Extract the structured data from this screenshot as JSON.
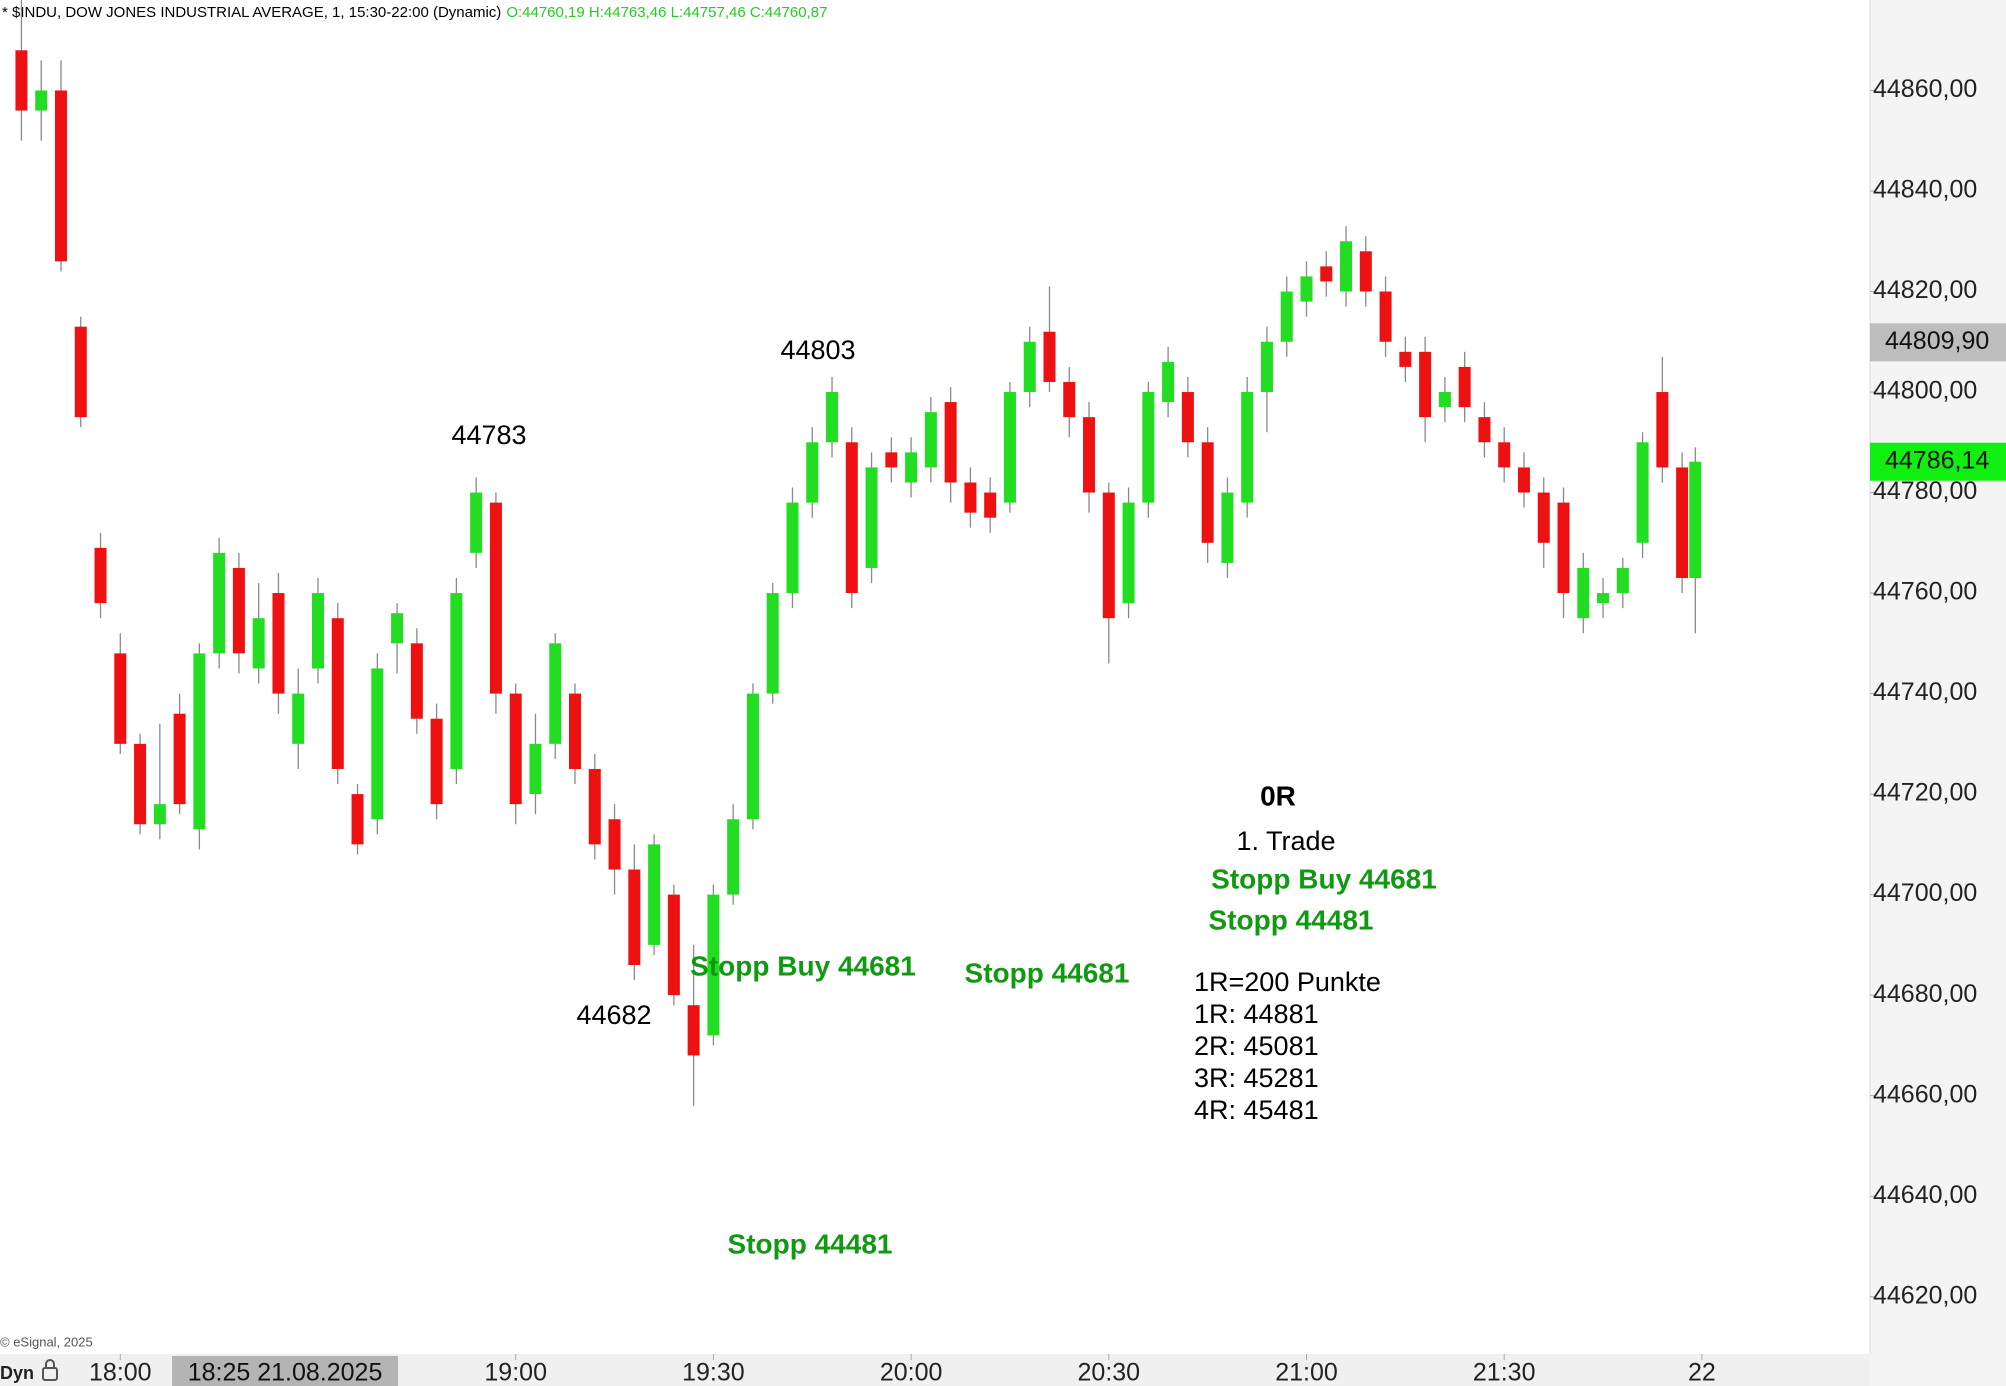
{
  "chart_data": {
    "type": "candlestick",
    "title": "* $INDU, DOW JONES INDUSTRIAL AVERAGE, 1, 15:30-22:00 (Dynamic)",
    "subtitle": "O:44760,19 H:44763,46 L:44757,46 C:44760,87",
    "up_color": "#22dd22",
    "down_color": "#ee1111",
    "wick_color": "#8a8a8a",
    "x": [
      "17:45",
      "17:48",
      "17:51",
      "17:54",
      "17:57",
      "18:00",
      "18:03",
      "18:06",
      "18:09",
      "18:12",
      "18:15",
      "18:18",
      "18:21",
      "18:24",
      "18:27",
      "18:30",
      "18:33",
      "18:36",
      "18:39",
      "18:42",
      "18:45",
      "18:48",
      "18:51",
      "18:54",
      "18:57",
      "19:00",
      "19:03",
      "19:06",
      "19:09",
      "19:12",
      "19:15",
      "19:18",
      "19:21",
      "19:24",
      "19:27",
      "19:30",
      "19:33",
      "19:36",
      "19:39",
      "19:42",
      "19:45",
      "19:48",
      "19:51",
      "19:54",
      "19:57",
      "20:00",
      "20:03",
      "20:06",
      "20:09",
      "20:12",
      "20:15",
      "20:18",
      "20:21",
      "20:24",
      "20:27",
      "20:30",
      "20:33",
      "20:36",
      "20:39",
      "20:42",
      "20:45",
      "20:48",
      "20:51",
      "20:54",
      "20:57",
      "21:00",
      "21:03",
      "21:06",
      "21:09",
      "21:12",
      "21:15",
      "21:18",
      "21:21",
      "21:24",
      "21:27",
      "21:30",
      "21:33",
      "21:36",
      "21:39",
      "21:42",
      "21:45",
      "21:48",
      "21:51",
      "21:54",
      "21:57",
      "21:59"
    ],
    "open": [
      44868,
      44856,
      44860,
      44813,
      44769,
      44748,
      44730,
      44714,
      44736,
      44713,
      44748,
      44765,
      44745,
      44760,
      44730,
      44745,
      44755,
      44720,
      44715,
      44750,
      44750,
      44735,
      44725,
      44768,
      44778,
      44740,
      44720,
      44730,
      44740,
      44725,
      44715,
      44705,
      44690,
      44700,
      44678,
      44672,
      44700,
      44715,
      44740,
      44760,
      44778,
      44790,
      44790,
      44765,
      44788,
      44782,
      44785,
      44798,
      44782,
      44780,
      44778,
      44800,
      44812,
      44802,
      44795,
      44780,
      44758,
      44778,
      44798,
      44800,
      44790,
      44766,
      44778,
      44800,
      44810,
      44818,
      44825,
      44820,
      44828,
      44820,
      44808,
      44808,
      44797,
      44805,
      44795,
      44790,
      44785,
      44780,
      44778,
      44755,
      44758,
      44760,
      44770,
      44800,
      44785,
      44763
    ],
    "high": [
      44880,
      44866,
      44866,
      44815,
      44772,
      44752,
      44732,
      44734,
      44740,
      44750,
      44771,
      44768,
      44762,
      44764,
      44745,
      44763,
      44758,
      44722,
      44748,
      44758,
      44753,
      44738,
      44763,
      44783,
      44780,
      44742,
      44736,
      44752,
      44742,
      44728,
      44718,
      44710,
      44712,
      44702,
      44690,
      44702,
      44718,
      44742,
      44762,
      44781,
      44793,
      44803,
      44793,
      44788,
      44791,
      44791,
      44799,
      44801,
      44785,
      44783,
      44802,
      44813,
      44821,
      44805,
      44798,
      44782,
      44781,
      44802,
      44809,
      44803,
      44793,
      44783,
      44803,
      44813,
      44823,
      44826,
      44828,
      44833,
      44831,
      44823,
      44811,
      44811,
      44803,
      44808,
      44798,
      44793,
      44788,
      44783,
      44781,
      44768,
      44763,
      44767,
      44792,
      44807,
      44788,
      44789
    ],
    "low": [
      44850,
      44850,
      44824,
      44793,
      44755,
      44728,
      44712,
      44711,
      44716,
      44709,
      44745,
      44744,
      44742,
      44736,
      44725,
      44742,
      44722,
      44708,
      44712,
      44744,
      44732,
      44715,
      44722,
      44765,
      44736,
      44714,
      44716,
      44727,
      44722,
      44707,
      44700,
      44683,
      44688,
      44678,
      44658,
      44670,
      44698,
      44713,
      44738,
      44757,
      44775,
      44787,
      44757,
      44762,
      44782,
      44779,
      44782,
      44778,
      44773,
      44772,
      44776,
      44797,
      44800,
      44791,
      44776,
      44746,
      44755,
      44775,
      44795,
      44787,
      44766,
      44763,
      44775,
      44792,
      44807,
      44815,
      44819,
      44817,
      44817,
      44807,
      44802,
      44790,
      44794,
      44794,
      44787,
      44782,
      44777,
      44765,
      44755,
      44752,
      44755,
      44757,
      44767,
      44782,
      44760,
      44752
    ],
    "close": [
      44856,
      44860,
      44826,
      44795,
      44758,
      44730,
      44714,
      44718,
      44718,
      44748,
      44768,
      44748,
      44755,
      44740,
      44740,
      44760,
      44725,
      44710,
      44745,
      44756,
      44735,
      44718,
      44760,
      44780,
      44740,
      44718,
      44730,
      44750,
      44725,
      44710,
      44705,
      44686,
      44710,
      44680,
      44668,
      44700,
      44715,
      44740,
      44760,
      44778,
      44790,
      44800,
      44760,
      44785,
      44785,
      44788,
      44796,
      44782,
      44776,
      44775,
      44800,
      44810,
      44802,
      44795,
      44780,
      44755,
      44778,
      44800,
      44806,
      44790,
      44770,
      44780,
      44800,
      44810,
      44820,
      44823,
      44822,
      44830,
      44820,
      44810,
      44805,
      44795,
      44800,
      44797,
      44790,
      44785,
      44780,
      44770,
      44760,
      44765,
      44760,
      44765,
      44790,
      44785,
      44763,
      44786.14
    ],
    "ylim": [
      44609,
      44878
    ],
    "yticks": [
      {
        "value": 44620,
        "label": "44620,00"
      },
      {
        "value": 44640,
        "label": "44640,00"
      },
      {
        "value": 44660,
        "label": "44660,00"
      },
      {
        "value": 44680,
        "label": "44680,00"
      },
      {
        "value": 44700,
        "label": "44700,00"
      },
      {
        "value": 44720,
        "label": "44720,00"
      },
      {
        "value": 44740,
        "label": "44740,00"
      },
      {
        "value": 44760,
        "label": "44760,00"
      },
      {
        "value": 44780,
        "label": "44780,00"
      },
      {
        "value": 44800,
        "label": "44800,00"
      },
      {
        "value": 44820,
        "label": "44820,00"
      },
      {
        "value": 44840,
        "label": "44840,00"
      },
      {
        "value": 44860,
        "label": "44860,00"
      }
    ],
    "xticks": [
      "18:00",
      "19:00",
      "19:30",
      "20:00",
      "20:30",
      "21:00",
      "21:30",
      {
        "value": "22:00",
        "label": "22"
      }
    ],
    "crosshair_label": "18:25 21.08.2025",
    "crosshair_price": {
      "value": 44809.9,
      "label": "44809,90"
    },
    "last_price": {
      "value": 44786.14,
      "label": "44786,14"
    },
    "annotations": [
      {
        "text": "44783",
        "color": "#000000",
        "bold": false
      },
      {
        "text": "44803",
        "color": "#000000",
        "bold": false
      },
      {
        "text": "44682",
        "color": "#000000",
        "bold": false
      },
      {
        "text": "Stopp Buy 44681",
        "color": "#119911",
        "bold": true
      },
      {
        "text": "Stopp 44681",
        "color": "#119911",
        "bold": true
      },
      {
        "text": "Stopp 44481",
        "color": "#119911",
        "bold": true
      },
      {
        "text": "0R",
        "color": "#000000",
        "bold": true
      },
      {
        "text": "1. Trade",
        "color": "#000000",
        "bold": false
      },
      {
        "text": "Stopp Buy 44681",
        "color": "#119911",
        "bold": true
      },
      {
        "text": "Stopp 44481",
        "color": "#119911",
        "bold": true
      },
      {
        "text": "1R=200 Punkte",
        "color": "#000000",
        "bold": false
      },
      {
        "text": "1R: 44881",
        "color": "#000000",
        "bold": false
      },
      {
        "text": "2R: 45081",
        "color": "#000000",
        "bold": false
      },
      {
        "text": "3R: 45281",
        "color": "#000000",
        "bold": false
      },
      {
        "text": "4R: 45481",
        "color": "#000000",
        "bold": false
      }
    ],
    "copyright": "© eSignal, 2025",
    "mode_label": "Dyn"
  }
}
